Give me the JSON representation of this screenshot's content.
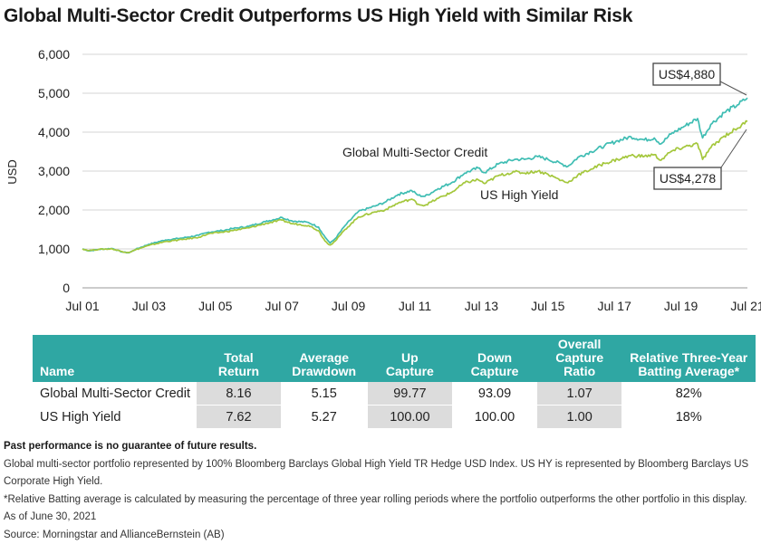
{
  "title": "Global Multi-Sector Credit Outperforms US High Yield with Similar Risk",
  "chart_data": {
    "type": "line",
    "ylabel": "USD",
    "ylim": [
      0,
      6000
    ],
    "yticks": [
      0,
      1000,
      2000,
      3000,
      4000,
      5000,
      6000
    ],
    "ytick_labels": [
      "0",
      "1,000",
      "2,000",
      "3,000",
      "4,000",
      "5,000",
      "6,000"
    ],
    "xtick_labels": [
      "Jul 01",
      "Jul 03",
      "Jul 05",
      "Jul 07",
      "Jul 09",
      "Jul 11",
      "Jul 13",
      "Jul 15",
      "Jul 17",
      "Jul 19",
      "Jul 21"
    ],
    "xlim": [
      2001.5,
      2021.5
    ],
    "grid": true,
    "series": [
      {
        "name": "Global Multi-Sector Credit",
        "color": "#3fbdb3",
        "end_label": "US$4,880",
        "points": [
          [
            2001.5,
            1000
          ],
          [
            2001.7,
            950
          ],
          [
            2002.0,
            990
          ],
          [
            2002.4,
            1010
          ],
          [
            2002.7,
            920
          ],
          [
            2002.9,
            900
          ],
          [
            2003.1,
            990
          ],
          [
            2003.5,
            1120
          ],
          [
            2004.0,
            1230
          ],
          [
            2004.5,
            1280
          ],
          [
            2005.0,
            1350
          ],
          [
            2005.3,
            1430
          ],
          [
            2005.7,
            1470
          ],
          [
            2006.0,
            1520
          ],
          [
            2006.5,
            1580
          ],
          [
            2007.0,
            1700
          ],
          [
            2007.5,
            1810
          ],
          [
            2007.8,
            1720
          ],
          [
            2008.3,
            1680
          ],
          [
            2008.6,
            1560
          ],
          [
            2008.8,
            1300
          ],
          [
            2008.95,
            1150
          ],
          [
            2009.1,
            1260
          ],
          [
            2009.4,
            1600
          ],
          [
            2009.8,
            1960
          ],
          [
            2010.3,
            2100
          ],
          [
            2010.6,
            2200
          ],
          [
            2011.0,
            2400
          ],
          [
            2011.4,
            2500
          ],
          [
            2011.6,
            2380
          ],
          [
            2011.8,
            2350
          ],
          [
            2012.2,
            2550
          ],
          [
            2012.6,
            2700
          ],
          [
            2013.0,
            2950
          ],
          [
            2013.4,
            3080
          ],
          [
            2013.6,
            2960
          ],
          [
            2014.0,
            3180
          ],
          [
            2014.5,
            3300
          ],
          [
            2014.8,
            3300
          ],
          [
            2015.2,
            3370
          ],
          [
            2015.5,
            3300
          ],
          [
            2015.9,
            3190
          ],
          [
            2016.1,
            3120
          ],
          [
            2016.4,
            3350
          ],
          [
            2016.8,
            3500
          ],
          [
            2017.2,
            3650
          ],
          [
            2017.6,
            3780
          ],
          [
            2018.0,
            3880
          ],
          [
            2018.4,
            3800
          ],
          [
            2018.7,
            3850
          ],
          [
            2018.9,
            3700
          ],
          [
            2019.2,
            3950
          ],
          [
            2019.6,
            4150
          ],
          [
            2020.0,
            4350
          ],
          [
            2020.15,
            3850
          ],
          [
            2020.4,
            4200
          ],
          [
            2020.8,
            4500
          ],
          [
            2021.2,
            4700
          ],
          [
            2021.5,
            4880
          ]
        ]
      },
      {
        "name": "US High Yield",
        "color": "#a4c73c",
        "end_label": "US$4,278",
        "points": [
          [
            2001.5,
            1000
          ],
          [
            2001.7,
            960
          ],
          [
            2002.0,
            990
          ],
          [
            2002.4,
            1000
          ],
          [
            2002.7,
            930
          ],
          [
            2002.9,
            910
          ],
          [
            2003.1,
            980
          ],
          [
            2003.5,
            1090
          ],
          [
            2004.0,
            1190
          ],
          [
            2004.5,
            1240
          ],
          [
            2005.0,
            1300
          ],
          [
            2005.3,
            1390
          ],
          [
            2005.7,
            1430
          ],
          [
            2006.0,
            1470
          ],
          [
            2006.5,
            1540
          ],
          [
            2007.0,
            1650
          ],
          [
            2007.5,
            1740
          ],
          [
            2007.8,
            1650
          ],
          [
            2008.3,
            1600
          ],
          [
            2008.6,
            1470
          ],
          [
            2008.8,
            1200
          ],
          [
            2008.95,
            1100
          ],
          [
            2009.1,
            1200
          ],
          [
            2009.4,
            1500
          ],
          [
            2009.8,
            1820
          ],
          [
            2010.3,
            1950
          ],
          [
            2010.6,
            2000
          ],
          [
            2011.0,
            2180
          ],
          [
            2011.4,
            2280
          ],
          [
            2011.6,
            2150
          ],
          [
            2011.8,
            2120
          ],
          [
            2012.2,
            2300
          ],
          [
            2012.6,
            2450
          ],
          [
            2013.0,
            2700
          ],
          [
            2013.4,
            2780
          ],
          [
            2013.6,
            2680
          ],
          [
            2014.0,
            2880
          ],
          [
            2014.5,
            2980
          ],
          [
            2014.8,
            2950
          ],
          [
            2015.2,
            3000
          ],
          [
            2015.5,
            2920
          ],
          [
            2015.9,
            2760
          ],
          [
            2016.1,
            2700
          ],
          [
            2016.4,
            2900
          ],
          [
            2016.8,
            3050
          ],
          [
            2017.2,
            3200
          ],
          [
            2017.6,
            3300
          ],
          [
            2018.0,
            3400
          ],
          [
            2018.4,
            3380
          ],
          [
            2018.7,
            3420
          ],
          [
            2018.9,
            3280
          ],
          [
            2019.2,
            3500
          ],
          [
            2019.6,
            3620
          ],
          [
            2020.0,
            3700
          ],
          [
            2020.15,
            3300
          ],
          [
            2020.4,
            3600
          ],
          [
            2020.8,
            3900
          ],
          [
            2021.2,
            4100
          ],
          [
            2021.5,
            4278
          ]
        ]
      }
    ],
    "annotations": {
      "series0_inline": "Global Multi-Sector Credit",
      "series1_inline": "US High Yield"
    }
  },
  "table": {
    "headers": [
      [
        "Name"
      ],
      [
        "Total",
        "Return"
      ],
      [
        "Average",
        "Drawdown"
      ],
      [
        "Up",
        "Capture"
      ],
      [
        "Down",
        "Capture"
      ],
      [
        "Overall",
        "Capture Ratio"
      ],
      [
        "Relative Three-Year",
        "Batting Average*"
      ]
    ],
    "rows": [
      [
        "Global Multi-Sector Credit",
        "8.16",
        "5.15",
        "99.77",
        "93.09",
        "1.07",
        "82%"
      ],
      [
        "US High Yield",
        "7.62",
        "5.27",
        "100.00",
        "100.00",
        "1.00",
        "18%"
      ]
    ]
  },
  "notes": {
    "disclaimer": "Past performance is no guarantee of future results.",
    "line1": "Global multi-sector portfolio represented by 100% Bloomberg Barclays Global High Yield TR Hedge USD Index. US HY is represented by Bloomberg Barclays US Corporate High Yield.",
    "line2": "*Relative Batting average is calculated by measuring the percentage of three year rolling periods where the portfolio outperforms the other portfolio in this display.",
    "line3": "As of June 30, 2021",
    "line4": "Source: Morningstar and AllianceBernstein (AB)"
  }
}
